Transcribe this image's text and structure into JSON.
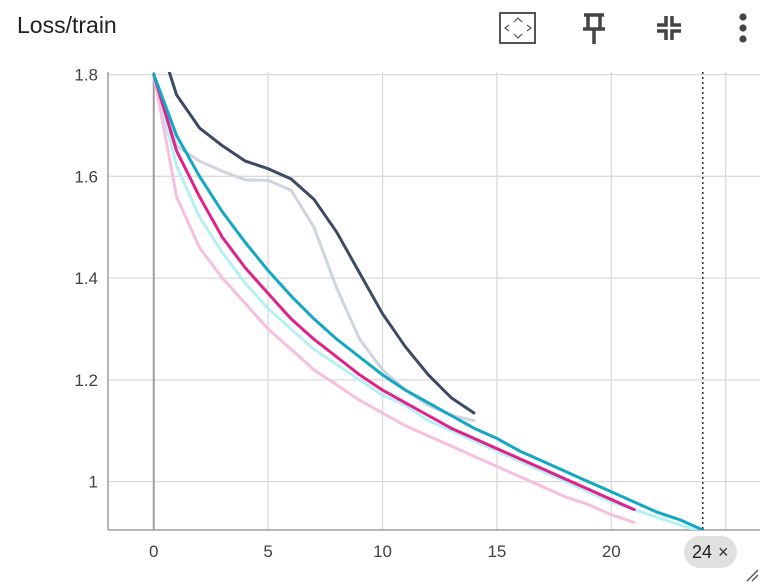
{
  "header": {
    "title": "Loss/train",
    "icons": [
      "fit-domain-icon",
      "pin-icon",
      "collapse-icon",
      "more-vert-icon"
    ]
  },
  "hover": {
    "step_label": "24",
    "close_glyph": "×"
  },
  "colors": {
    "grid": "#dadada",
    "axis": "#9e9e9e",
    "cursor": "#333333"
  },
  "chart_data": {
    "type": "line",
    "title": "Loss/train",
    "xlim": [
      -2,
      26.5
    ],
    "ylim": [
      0.905,
      1.805
    ],
    "xticks": [
      0,
      5,
      10,
      15,
      20,
      25
    ],
    "yticks": [
      1.0,
      1.2,
      1.4,
      1.6,
      1.8
    ],
    "ytick_labels": [
      "1",
      "1.2",
      "1.4",
      "1.6",
      "1.8"
    ],
    "xtick_labels": [
      "0",
      "5",
      "10",
      "15",
      "20",
      "25"
    ],
    "grid": true,
    "hover_step": 24,
    "series": [
      {
        "color": "#b6f0f3",
        "values": [
          [
            0,
            1.8
          ],
          [
            1,
            1.62
          ],
          [
            2,
            1.52
          ],
          [
            3,
            1.45
          ],
          [
            4,
            1.39
          ],
          [
            5,
            1.34
          ],
          [
            6,
            1.3
          ],
          [
            7,
            1.26
          ],
          [
            8,
            1.23
          ],
          [
            9,
            1.2
          ],
          [
            10,
            1.17
          ],
          [
            11,
            1.15
          ],
          [
            12,
            1.12
          ],
          [
            13,
            1.1
          ],
          [
            14,
            1.08
          ],
          [
            15,
            1.06
          ],
          [
            16,
            1.04
          ],
          [
            17,
            1.02
          ],
          [
            18,
            1.0
          ],
          [
            19,
            0.98
          ],
          [
            20,
            0.96
          ],
          [
            21,
            0.945
          ],
          [
            22,
            0.93
          ],
          [
            23,
            0.915
          ],
          [
            24,
            0.9
          ]
        ]
      },
      {
        "color": "#f6bfdd",
        "values": [
          [
            0,
            1.8
          ],
          [
            1,
            1.56
          ],
          [
            2,
            1.46
          ],
          [
            3,
            1.4
          ],
          [
            4,
            1.35
          ],
          [
            5,
            1.3
          ],
          [
            6,
            1.26
          ],
          [
            7,
            1.22
          ],
          [
            8,
            1.19
          ],
          [
            9,
            1.16
          ],
          [
            10,
            1.135
          ],
          [
            11,
            1.11
          ],
          [
            12,
            1.09
          ],
          [
            13,
            1.07
          ],
          [
            14,
            1.05
          ],
          [
            15,
            1.03
          ],
          [
            16,
            1.01
          ],
          [
            17,
            0.99
          ],
          [
            18,
            0.97
          ],
          [
            19,
            0.955
          ],
          [
            20,
            0.935
          ],
          [
            21,
            0.92
          ]
        ]
      },
      {
        "color": "#cfd4de",
        "values": [
          [
            0,
            1.8
          ],
          [
            1,
            1.66
          ],
          [
            2,
            1.63
          ],
          [
            3,
            1.61
          ],
          [
            4,
            1.593
          ],
          [
            5,
            1.592
          ],
          [
            6,
            1.573
          ],
          [
            7,
            1.5
          ],
          [
            8,
            1.38
          ],
          [
            9,
            1.28
          ],
          [
            10,
            1.22
          ],
          [
            11,
            1.18
          ],
          [
            12,
            1.15
          ],
          [
            13,
            1.13
          ],
          [
            14,
            1.12
          ]
        ]
      },
      {
        "color": "#e0218a",
        "values": [
          [
            0,
            1.8
          ],
          [
            1,
            1.65
          ],
          [
            2,
            1.56
          ],
          [
            3,
            1.48
          ],
          [
            4,
            1.42
          ],
          [
            5,
            1.37
          ],
          [
            6,
            1.32
          ],
          [
            7,
            1.28
          ],
          [
            8,
            1.245
          ],
          [
            9,
            1.21
          ],
          [
            10,
            1.18
          ],
          [
            11,
            1.155
          ],
          [
            12,
            1.13
          ],
          [
            13,
            1.105
          ],
          [
            14,
            1.085
          ],
          [
            15,
            1.065
          ],
          [
            16,
            1.045
          ],
          [
            17,
            1.025
          ],
          [
            18,
            1.005
          ],
          [
            19,
            0.985
          ],
          [
            20,
            0.965
          ],
          [
            21,
            0.945
          ]
        ]
      },
      {
        "color": "#12a8c4",
        "values": [
          [
            0,
            1.8
          ],
          [
            1,
            1.68
          ],
          [
            2,
            1.6
          ],
          [
            3,
            1.53
          ],
          [
            4,
            1.47
          ],
          [
            5,
            1.415
          ],
          [
            6,
            1.365
          ],
          [
            7,
            1.32
          ],
          [
            8,
            1.28
          ],
          [
            9,
            1.245
          ],
          [
            10,
            1.21
          ],
          [
            11,
            1.18
          ],
          [
            12,
            1.155
          ],
          [
            13,
            1.13
          ],
          [
            14,
            1.105
          ],
          [
            15,
            1.085
          ],
          [
            16,
            1.06
          ],
          [
            17,
            1.04
          ],
          [
            18,
            1.02
          ],
          [
            19,
            1.0
          ],
          [
            20,
            0.98
          ],
          [
            21,
            0.96
          ],
          [
            22,
            0.94
          ],
          [
            23,
            0.925
          ],
          [
            24,
            0.905
          ]
        ]
      },
      {
        "color": "#3d4a63",
        "values": [
          [
            0,
            1.9
          ],
          [
            1,
            1.76
          ],
          [
            2,
            1.695
          ],
          [
            3,
            1.66
          ],
          [
            4,
            1.63
          ],
          [
            5,
            1.615
          ],
          [
            6,
            1.595
          ],
          [
            7,
            1.555
          ],
          [
            8,
            1.49
          ],
          [
            9,
            1.41
          ],
          [
            10,
            1.33
          ],
          [
            11,
            1.265
          ],
          [
            12,
            1.21
          ],
          [
            13,
            1.165
          ],
          [
            14,
            1.135
          ]
        ]
      }
    ]
  }
}
